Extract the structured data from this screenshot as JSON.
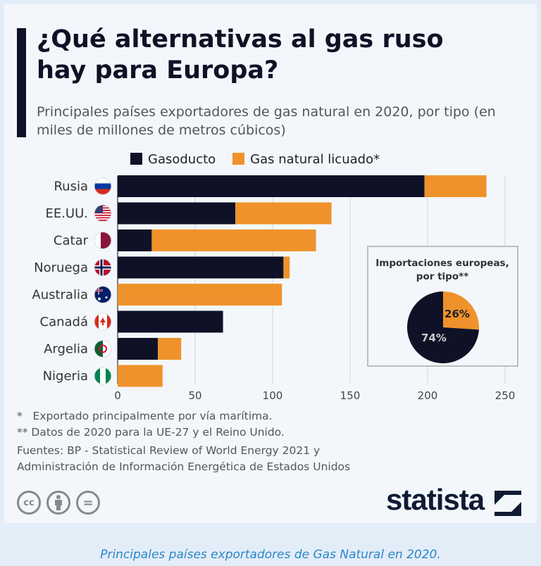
{
  "title": "¿Qué alternativas al gas ruso hay para Europa?",
  "subtitle": "Principales países exportadores de gas natural en 2020, por tipo (en miles de millones de metros cúbicos)",
  "colors": {
    "pipeline": "#0f1226",
    "lng": "#f0922b"
  },
  "chart_data": [
    {
      "type": "bar",
      "orientation": "horizontal",
      "stacked": true,
      "categories": [
        "Rusia",
        "EE.UU.",
        "Catar",
        "Noruega",
        "Australia",
        "Canadá",
        "Argelia",
        "Nigeria"
      ],
      "series": [
        {
          "name": "Gasoducto",
          "values": [
            198,
            76,
            22,
            107,
            0,
            68,
            26,
            0
          ]
        },
        {
          "name": "Gas natural licuado*",
          "values": [
            40,
            62,
            106,
            4,
            106,
            0,
            15,
            29
          ]
        }
      ],
      "xlim": [
        0,
        250
      ],
      "xticks": [
        "0",
        "50",
        "100",
        "150",
        "200",
        "250"
      ],
      "grid": true,
      "legend": "top"
    },
    {
      "type": "pie",
      "title": "Importaciones europeas, por tipo**",
      "labels": [
        "Gas natural licuado*",
        "Gasoducto"
      ],
      "values": [
        26,
        74
      ],
      "value_labels": [
        "26%",
        "74%"
      ]
    }
  ],
  "footnotes": [
    "*   Exportado principalmente por vía marítima.",
    "** Datos de 2020 para la UE-27 y el Reino Unido."
  ],
  "sources": [
    "Fuentes: BP - Statistical Review of World Energy 2021 y",
    "Administración de Información Energética de Estados Unidos"
  ],
  "license_icons": [
    "cc",
    "by",
    "nd"
  ],
  "license_labels": {
    "cc": "cc",
    "nd": "="
  },
  "brand": "statista",
  "caption": "Principales países exportadores de Gas Natural en 2020."
}
